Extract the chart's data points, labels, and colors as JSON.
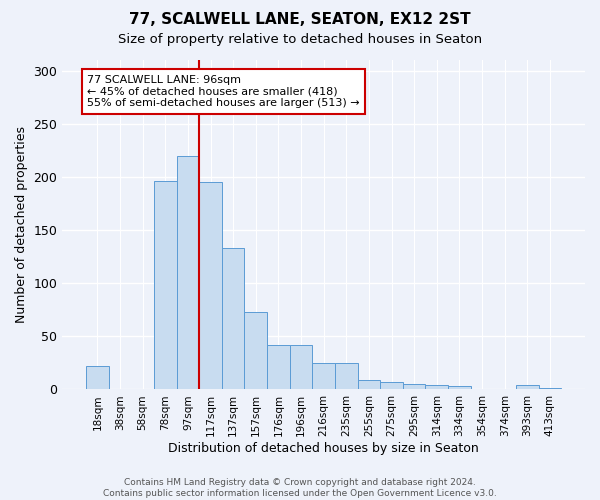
{
  "title": "77, SCALWELL LANE, SEATON, EX12 2ST",
  "subtitle": "Size of property relative to detached houses in Seaton",
  "xlabel": "Distribution of detached houses by size in Seaton",
  "ylabel": "Number of detached properties",
  "bin_labels": [
    "18sqm",
    "38sqm",
    "58sqm",
    "78sqm",
    "97sqm",
    "117sqm",
    "137sqm",
    "157sqm",
    "176sqm",
    "196sqm",
    "216sqm",
    "235sqm",
    "255sqm",
    "275sqm",
    "295sqm",
    "314sqm",
    "334sqm",
    "354sqm",
    "374sqm",
    "393sqm",
    "413sqm"
  ],
  "bar_heights": [
    22,
    0,
    0,
    196,
    220,
    195,
    133,
    73,
    42,
    42,
    25,
    25,
    9,
    7,
    5,
    4,
    3,
    0,
    0,
    4,
    1
  ],
  "bar_color": "#c8dcf0",
  "bar_edge_color": "#5b9bd5",
  "vline_x": 4.5,
  "vline_color": "#cc0000",
  "annotation_text": "77 SCALWELL LANE: 96sqm\n← 45% of detached houses are smaller (418)\n55% of semi-detached houses are larger (513) →",
  "annotation_box_color": "#ffffff",
  "annotation_box_edge": "#cc0000",
  "ylim": [
    0,
    310
  ],
  "yticks": [
    0,
    50,
    100,
    150,
    200,
    250,
    300
  ],
  "footnote": "Contains HM Land Registry data © Crown copyright and database right 2024.\nContains public sector information licensed under the Open Government Licence v3.0.",
  "bg_color": "#eef2fa",
  "plot_bg_color": "#eef2fa",
  "title_fontsize": 11,
  "subtitle_fontsize": 9.5,
  "ylabel_fontsize": 9,
  "xlabel_fontsize": 9
}
